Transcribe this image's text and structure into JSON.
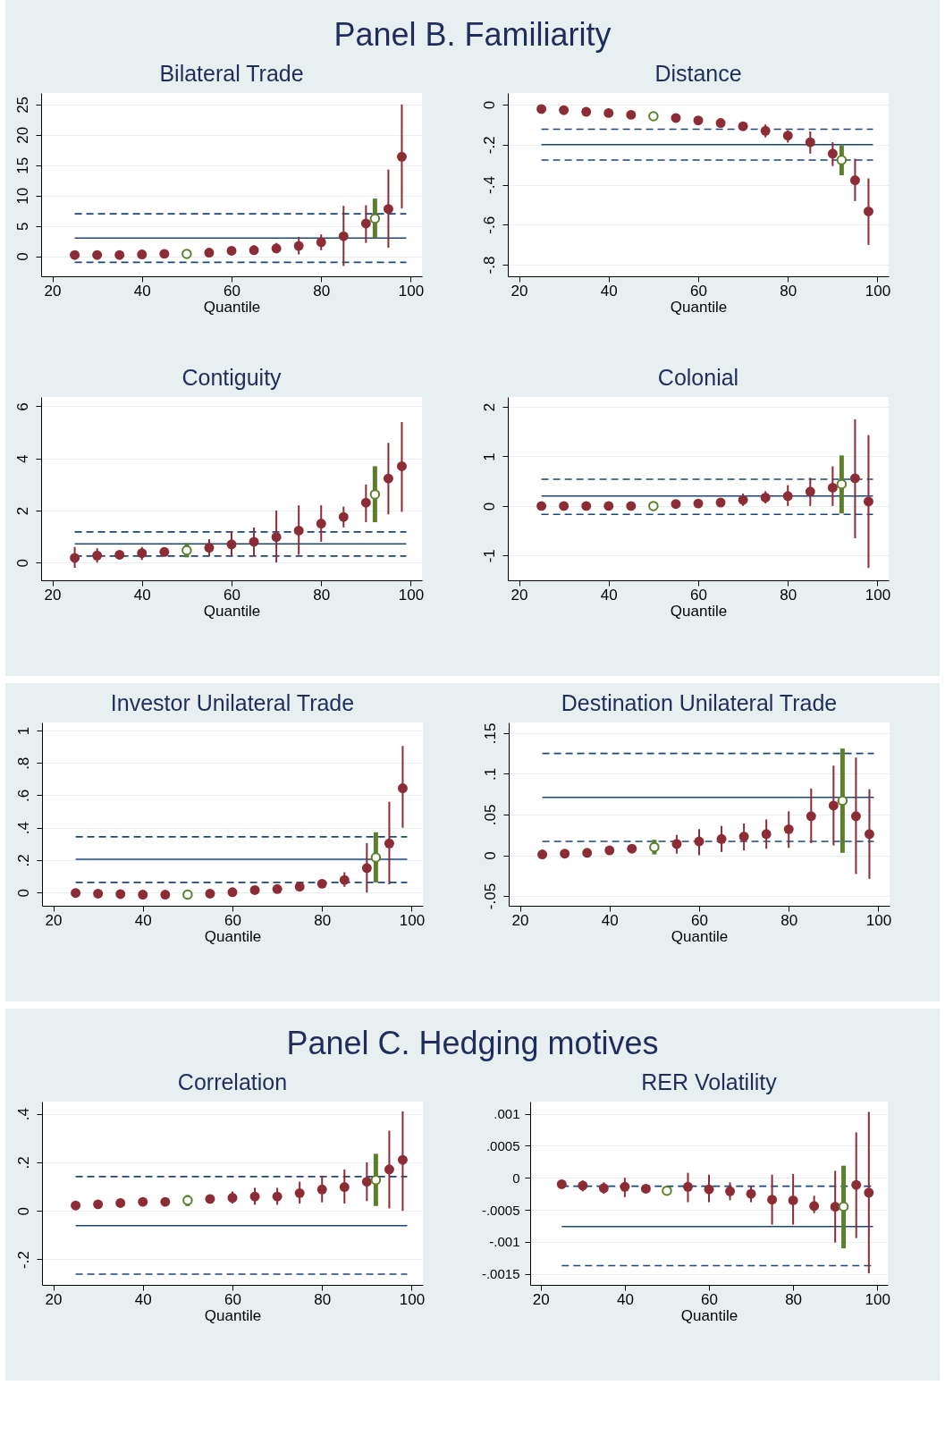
{
  "chart_data": [
    {
      "type": "other",
      "title": "Panel B. Familiarity"
    },
    {
      "type": "scatter",
      "title": "Bilateral Trade",
      "xlabel": "Quantile",
      "xlim": [
        17.5,
        102.5
      ],
      "xticks": [
        20,
        40,
        60,
        80,
        100
      ],
      "ylim": [
        -3.3,
        26.9
      ],
      "yticks": [
        0,
        5,
        10,
        15,
        20,
        25
      ],
      "grid": "y",
      "marker": "circle",
      "series": [
        {
          "color": "#8c2d35",
          "x": [
            25,
            30,
            35,
            40,
            45,
            55,
            60,
            65,
            70,
            75,
            80,
            85,
            90,
            95,
            98
          ],
          "values": [
            0.2,
            0.2,
            0.2,
            0.3,
            0.4,
            0.6,
            0.9,
            1.0,
            1.3,
            1.7,
            2.3,
            3.3,
            5.4,
            7.8,
            16.4
          ],
          "errors": [
            null,
            null,
            null,
            null,
            null,
            null,
            [
              0.2,
              1.6
            ],
            [
              0.5,
              1.8
            ],
            [
              0.5,
              2.2
            ],
            [
              0.3,
              3.2
            ],
            [
              1.0,
              3.6
            ],
            [
              -1.6,
              8.3
            ],
            [
              2.2,
              8.4
            ],
            [
              1.4,
              14.3
            ],
            [
              7.9,
              25.0
            ]
          ]
        },
        {
          "color": "#5b7f2a",
          "x": [
            50,
            92
          ],
          "values": [
            0.4,
            6.2
          ],
          "errors": [
            null,
            [
              3.0,
              9.5
            ]
          ]
        }
      ],
      "ref_lines": [
        {
          "axis": "y",
          "value": 3.0,
          "color": "#1c4878",
          "line_style": "solid"
        },
        {
          "axis": "y",
          "value": 7.0,
          "color": "#1c4878",
          "line_style": "dashed"
        },
        {
          "axis": "y",
          "value": -1.0,
          "color": "#1c4878",
          "line_style": "dashed"
        }
      ]
    },
    {
      "type": "scatter",
      "title": "Distance",
      "xlabel": "Quantile",
      "xlim": [
        17.5,
        102.5
      ],
      "xticks": [
        20,
        40,
        60,
        80,
        100
      ],
      "ylim": [
        -0.858,
        0.058
      ],
      "yticks": [
        0,
        {
          "value": -0.2,
          "label": "-.2"
        },
        {
          "value": -0.4,
          "label": "-.4"
        },
        {
          "value": -0.6,
          "label": "-.6"
        },
        {
          "value": -0.8,
          "label": "-.8"
        }
      ],
      "grid": "y",
      "marker": "circle",
      "series": [
        {
          "color": "#8c2d35",
          "x": [
            25,
            30,
            35,
            40,
            45,
            55,
            60,
            65,
            70,
            75,
            80,
            85,
            90,
            95,
            98
          ],
          "values": [
            -0.022,
            -0.028,
            -0.036,
            -0.042,
            -0.051,
            -0.067,
            -0.079,
            -0.092,
            -0.108,
            -0.131,
            -0.155,
            -0.188,
            -0.245,
            -0.378,
            -0.534
          ],
          "errors": [
            null,
            null,
            null,
            null,
            null,
            null,
            null,
            null,
            [
              -0.128,
              -0.085
            ],
            [
              -0.164,
              -0.099
            ],
            [
              -0.19,
              -0.128
            ],
            [
              -0.245,
              -0.134
            ],
            [
              -0.307,
              -0.188
            ],
            [
              -0.482,
              -0.27
            ],
            [
              -0.701,
              -0.369
            ]
          ]
        },
        {
          "color": "#5b7f2a",
          "x": [
            50,
            92
          ],
          "values": [
            -0.058,
            -0.277
          ],
          "errors": [
            null,
            [
              -0.353,
              -0.204
            ]
          ]
        }
      ],
      "ref_lines": [
        {
          "axis": "y",
          "value": -0.2,
          "color": "#1c4878",
          "line_style": "solid"
        },
        {
          "axis": "y",
          "value": -0.123,
          "color": "#1c4878",
          "line_style": "dashed"
        },
        {
          "axis": "y",
          "value": -0.277,
          "color": "#1c4878",
          "line_style": "dashed"
        }
      ]
    },
    {
      "type": "scatter",
      "title": "Contiguity",
      "xlabel": "Quantile",
      "xlim": [
        17.5,
        102.5
      ],
      "xticks": [
        20,
        40,
        60,
        80,
        100
      ],
      "ylim": [
        -0.68,
        6.36
      ],
      "yticks": [
        0,
        2,
        4,
        6
      ],
      "grid": "y",
      "marker": "circle",
      "series": [
        {
          "color": "#8c2d35",
          "x": [
            25,
            30,
            35,
            40,
            45,
            55,
            60,
            65,
            70,
            75,
            80,
            85,
            90,
            95,
            98
          ],
          "values": [
            0.18,
            0.27,
            0.3,
            0.36,
            0.41,
            0.57,
            0.7,
            0.8,
            0.98,
            1.23,
            1.5,
            1.75,
            2.3,
            3.23,
            3.7
          ],
          "errors": [
            [
              -0.2,
              0.6
            ],
            [
              0.0,
              0.55
            ],
            null,
            [
              0.1,
              0.6
            ],
            null,
            [
              0.25,
              0.9
            ],
            [
              0.25,
              1.2
            ],
            [
              0.25,
              1.35
            ],
            [
              0.0,
              2.0
            ],
            [
              0.3,
              2.2
            ],
            [
              0.8,
              2.2
            ],
            [
              1.35,
              2.15
            ],
            [
              1.55,
              3.0
            ],
            [
              1.85,
              4.6
            ],
            [
              1.95,
              5.4
            ]
          ]
        },
        {
          "color": "#5b7f2a",
          "x": [
            50,
            92
          ],
          "values": [
            0.47,
            2.62
          ],
          "errors": [
            [
              0.2,
              0.75
            ],
            [
              1.55,
              3.7
            ]
          ]
        }
      ],
      "ref_lines": [
        {
          "axis": "y",
          "value": 0.72,
          "color": "#1c4878",
          "line_style": "solid"
        },
        {
          "axis": "y",
          "value": 1.18,
          "color": "#1c4878",
          "line_style": "dashed"
        },
        {
          "axis": "y",
          "value": 0.25,
          "color": "#1c4878",
          "line_style": "dashed"
        }
      ]
    },
    {
      "type": "scatter",
      "title": "Colonial",
      "xlabel": "Quantile",
      "xlim": [
        17.5,
        102.5
      ],
      "xticks": [
        20,
        40,
        60,
        80,
        100
      ],
      "ylim": [
        -1.5,
        2.2
      ],
      "yticks": [
        -1,
        0,
        1,
        2
      ],
      "grid": "y",
      "marker": "circle",
      "series": [
        {
          "color": "#8c2d35",
          "x": [
            25,
            30,
            35,
            40,
            45,
            55,
            60,
            65,
            70,
            75,
            80,
            85,
            90,
            95,
            98
          ],
          "values": [
            0.0,
            0.0,
            0.0,
            0.0,
            0.0,
            0.04,
            0.05,
            0.07,
            0.12,
            0.17,
            0.2,
            0.29,
            0.37,
            0.56,
            0.09
          ],
          "errors": [
            null,
            null,
            null,
            null,
            null,
            null,
            null,
            null,
            [
              0.0,
              0.25
            ],
            [
              0.05,
              0.3
            ],
            [
              0.0,
              0.42
            ],
            [
              0.0,
              0.57
            ],
            [
              0.0,
              0.8
            ],
            [
              -0.65,
              1.75
            ],
            [
              -1.25,
              1.43
            ]
          ]
        },
        {
          "color": "#5b7f2a",
          "x": [
            50,
            92
          ],
          "values": [
            0.0,
            0.44
          ],
          "errors": [
            null,
            [
              -0.15,
              1.02
            ]
          ]
        }
      ],
      "ref_lines": [
        {
          "axis": "y",
          "value": 0.2,
          "color": "#1c4878",
          "line_style": "solid"
        },
        {
          "axis": "y",
          "value": 0.54,
          "color": "#1c4878",
          "line_style": "dashed"
        },
        {
          "axis": "y",
          "value": -0.17,
          "color": "#1c4878",
          "line_style": "dashed"
        }
      ]
    },
    {
      "type": "scatter",
      "title": "Investor Unilateral Trade",
      "xlabel": "Quantile",
      "xlim": [
        17.5,
        102.5
      ],
      "xticks": [
        20,
        40,
        60,
        80,
        100
      ],
      "ylim": [
        -0.082,
        1.05
      ],
      "yticks": [
        0,
        {
          "value": 0.2,
          "label": ".2"
        },
        {
          "value": 0.4,
          "label": ".4"
        },
        {
          "value": 0.6,
          "label": ".6"
        },
        {
          "value": 0.8,
          "label": ".8"
        },
        1
      ],
      "grid": "y",
      "marker": "circle",
      "series": [
        {
          "color": "#8c2d35",
          "x": [
            25,
            30,
            35,
            40,
            45,
            55,
            60,
            65,
            70,
            75,
            80,
            85,
            90,
            95,
            98
          ],
          "values": [
            -0.003,
            -0.007,
            -0.01,
            -0.013,
            -0.013,
            -0.007,
            0.002,
            0.015,
            0.021,
            0.036,
            0.054,
            0.077,
            0.151,
            0.303,
            0.644
          ],
          "errors": [
            null,
            null,
            null,
            null,
            null,
            null,
            null,
            null,
            null,
            null,
            null,
            [
              0.035,
              0.125
            ],
            [
              0.0,
              0.305
            ],
            [
              0.05,
              0.56
            ],
            [
              0.4,
              0.905
            ]
          ]
        },
        {
          "color": "#5b7f2a",
          "x": [
            50,
            92
          ],
          "values": [
            -0.013,
            0.216
          ],
          "errors": [
            null,
            [
              0.062,
              0.372
            ]
          ]
        }
      ],
      "ref_lines": [
        {
          "axis": "y",
          "value": 0.205,
          "color": "#1c4878",
          "line_style": "solid"
        },
        {
          "axis": "y",
          "value": 0.344,
          "color": "#1c4878",
          "line_style": "dashed"
        },
        {
          "axis": "y",
          "value": 0.062,
          "color": "#1c4878",
          "line_style": "dashed"
        }
      ]
    },
    {
      "type": "scatter",
      "title": "Destination Unilateral Trade",
      "xlabel": "Quantile",
      "xlim": [
        17.5,
        102.5
      ],
      "xticks": [
        20,
        40,
        60,
        80,
        100
      ],
      "ylim": [
        -0.062,
        0.163
      ],
      "yticks": [
        {
          "value": -0.05,
          "label": "-.05"
        },
        0,
        {
          "value": 0.05,
          "label": ".05"
        },
        {
          "value": 0.1,
          "label": ".1"
        },
        {
          "value": 0.15,
          "label": ".15"
        }
      ],
      "grid": "y",
      "marker": "circle",
      "series": [
        {
          "color": "#8c2d35",
          "x": [
            25,
            30,
            35,
            40,
            45,
            55,
            60,
            65,
            70,
            75,
            80,
            85,
            90,
            95,
            98
          ],
          "values": [
            0.001,
            0.002,
            0.003,
            0.006,
            0.008,
            0.014,
            0.017,
            0.02,
            0.023,
            0.026,
            0.032,
            0.048,
            0.061,
            0.048,
            0.026
          ],
          "errors": [
            null,
            null,
            null,
            null,
            null,
            [
              0.002,
              0.025
            ],
            [
              0.0,
              0.032
            ],
            [
              0.004,
              0.036
            ],
            [
              0.006,
              0.039
            ],
            [
              0.008,
              0.044
            ],
            [
              0.009,
              0.054
            ],
            [
              0.015,
              0.082
            ],
            [
              0.012,
              0.11
            ],
            [
              -0.023,
              0.12
            ],
            [
              -0.029,
              0.081
            ]
          ]
        },
        {
          "color": "#5b7f2a",
          "x": [
            50,
            92
          ],
          "values": [
            0.01,
            0.067
          ],
          "errors": [
            [
              0.001,
              0.019
            ],
            [
              0.003,
              0.131
            ]
          ]
        }
      ],
      "ref_lines": [
        {
          "axis": "y",
          "value": 0.071,
          "color": "#1c4878",
          "line_style": "solid"
        },
        {
          "axis": "y",
          "value": 0.125,
          "color": "#1c4878",
          "line_style": "dashed"
        },
        {
          "axis": "y",
          "value": 0.017,
          "color": "#1c4878",
          "line_style": "dashed"
        }
      ]
    },
    {
      "type": "other",
      "title": "Panel C. Hedging motives"
    },
    {
      "type": "scatter",
      "title": "Correlation",
      "xlabel": "Quantile",
      "xlim": [
        17.5,
        102.5
      ],
      "xticks": [
        20,
        40,
        60,
        80,
        100
      ],
      "ylim": [
        -0.305,
        0.45
      ],
      "yticks": [
        {
          "value": -0.2,
          "label": "-.2"
        },
        0,
        {
          "value": 0.2,
          "label": ".2"
        },
        {
          "value": 0.4,
          "label": ".4"
        }
      ],
      "grid": "y",
      "marker": "circle",
      "series": [
        {
          "color": "#8c2d35",
          "x": [
            25,
            30,
            35,
            40,
            45,
            55,
            60,
            65,
            70,
            75,
            80,
            85,
            90,
            95,
            98
          ],
          "values": [
            0.022,
            0.027,
            0.032,
            0.037,
            0.037,
            0.049,
            0.054,
            0.059,
            0.059,
            0.073,
            0.088,
            0.098,
            0.12,
            0.171,
            0.21
          ],
          "errors": [
            null,
            null,
            null,
            null,
            null,
            null,
            [
              0.03,
              0.08
            ],
            [
              0.025,
              0.095
            ],
            [
              0.025,
              0.095
            ],
            [
              0.03,
              0.12
            ],
            [
              0.035,
              0.145
            ],
            [
              0.03,
              0.17
            ],
            [
              0.04,
              0.2
            ],
            [
              0.01,
              0.33
            ],
            [
              0.0,
              0.41
            ]
          ]
        },
        {
          "color": "#5b7f2a",
          "x": [
            50,
            92
          ],
          "values": [
            0.043,
            0.127
          ],
          "errors": [
            [
              0.02,
              0.065
            ],
            [
              0.02,
              0.235
            ]
          ]
        }
      ],
      "ref_lines": [
        {
          "axis": "y",
          "value": -0.061,
          "color": "#1c4878",
          "line_style": "solid"
        },
        {
          "axis": "y",
          "value": 0.141,
          "color": "#1c4878",
          "line_style": "dashed"
        },
        {
          "axis": "y",
          "value": -0.261,
          "color": "#1c4878",
          "line_style": "dashed"
        }
      ]
    },
    {
      "type": "scatter",
      "title": "RER Volatility",
      "xlabel": "Quantile",
      "xlim": [
        17.5,
        102.5
      ],
      "xticks": [
        20,
        40,
        60,
        80,
        100
      ],
      "ylim": [
        -0.00167,
        0.00119
      ],
      "yticks": [
        {
          "value": -0.0015,
          "label": "-.0015"
        },
        {
          "value": -0.001,
          "label": "-.001"
        },
        {
          "value": -0.0005,
          "label": "-.0005"
        },
        0,
        {
          "value": 0.0005,
          "label": ".0005"
        },
        {
          "value": 0.001,
          "label": ".001"
        }
      ],
      "grid": "y",
      "marker": "circle",
      "series": [
        {
          "color": "#8c2d35",
          "x": [
            25,
            30,
            35,
            40,
            45,
            55,
            60,
            65,
            70,
            75,
            80,
            85,
            90,
            95,
            98
          ],
          "values": [
            -0.0001,
            -0.00012,
            -0.00016,
            -0.00014,
            -0.00017,
            -0.00014,
            -0.00018,
            -0.00021,
            -0.00025,
            -0.00034,
            -0.00035,
            -0.00044,
            -0.00045,
            -0.00011,
            -0.00023
          ],
          "errors": [
            null,
            [
              -0.00021,
              -4e-05
            ],
            [
              -0.00025,
              -7e-05
            ],
            [
              -0.0003,
              0.0
            ],
            null,
            [
              -0.00038,
              8e-05
            ],
            [
              -0.00038,
              5e-05
            ],
            [
              -0.00035,
              -7e-05
            ],
            [
              -0.00038,
              -0.00012
            ],
            [
              -0.00073,
              5e-05
            ],
            [
              -0.00073,
              6e-05
            ],
            [
              -0.00055,
              -0.00028
            ],
            [
              -0.00101,
              0.00011
            ],
            [
              -0.00094,
              0.00071
            ],
            [
              -0.00149,
              0.00103
            ]
          ]
        },
        {
          "color": "#5b7f2a",
          "x": [
            50,
            92
          ],
          "values": [
            -0.0002,
            -0.00045
          ],
          "errors": [
            null,
            [
              -0.0011,
              0.00019
            ]
          ]
        }
      ],
      "ref_lines": [
        {
          "axis": "y",
          "value": -0.00076,
          "color": "#1c4878",
          "line_style": "solid"
        },
        {
          "axis": "y",
          "value": -0.00013,
          "color": "#1c4878",
          "line_style": "dashed"
        },
        {
          "axis": "y",
          "value": -0.00137,
          "color": "#1c4878",
          "line_style": "dashed"
        }
      ]
    }
  ]
}
